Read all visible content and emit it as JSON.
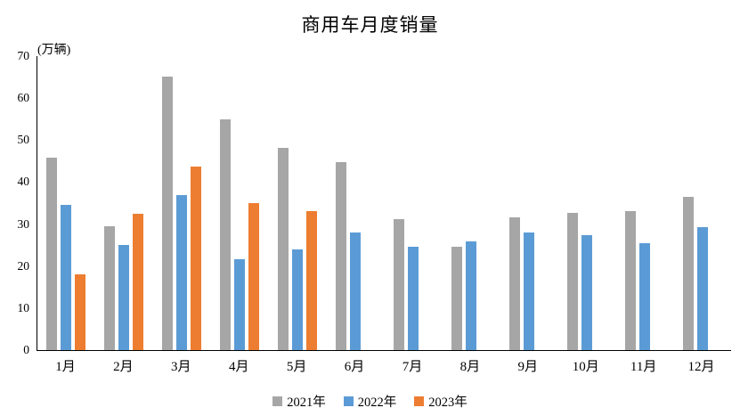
{
  "chart_data": {
    "type": "bar",
    "title": "商用车月度销量",
    "ylabel": "(万辆)",
    "xlabel": "",
    "categories": [
      "1月",
      "2月",
      "3月",
      "4月",
      "5月",
      "6月",
      "7月",
      "8月",
      "9月",
      "10月",
      "11月",
      "12月"
    ],
    "series": [
      {
        "name": "2021年",
        "color": "#A6A6A6",
        "values": [
          45.9,
          29.5,
          65.2,
          54.9,
          48.1,
          44.7,
          31.2,
          24.7,
          31.7,
          32.6,
          33.2,
          36.5
        ]
      },
      {
        "name": "2022年",
        "color": "#5B9BD5",
        "values": [
          34.5,
          25.0,
          37.0,
          21.6,
          23.9,
          28.1,
          24.6,
          25.9,
          28.0,
          27.4,
          25.5,
          29.2
        ]
      },
      {
        "name": "2023年",
        "color": "#ED7D31",
        "values": [
          18.0,
          32.4,
          43.7,
          35.0,
          33.0,
          null,
          null,
          null,
          null,
          null,
          null,
          null
        ]
      }
    ],
    "ylim": [
      0,
      70
    ],
    "yticks": [
      0,
      10,
      20,
      30,
      40,
      50,
      60,
      70
    ],
    "grid": false,
    "legend_position": "bottom",
    "axis_color": "#000000",
    "background_color": "#ffffff"
  }
}
